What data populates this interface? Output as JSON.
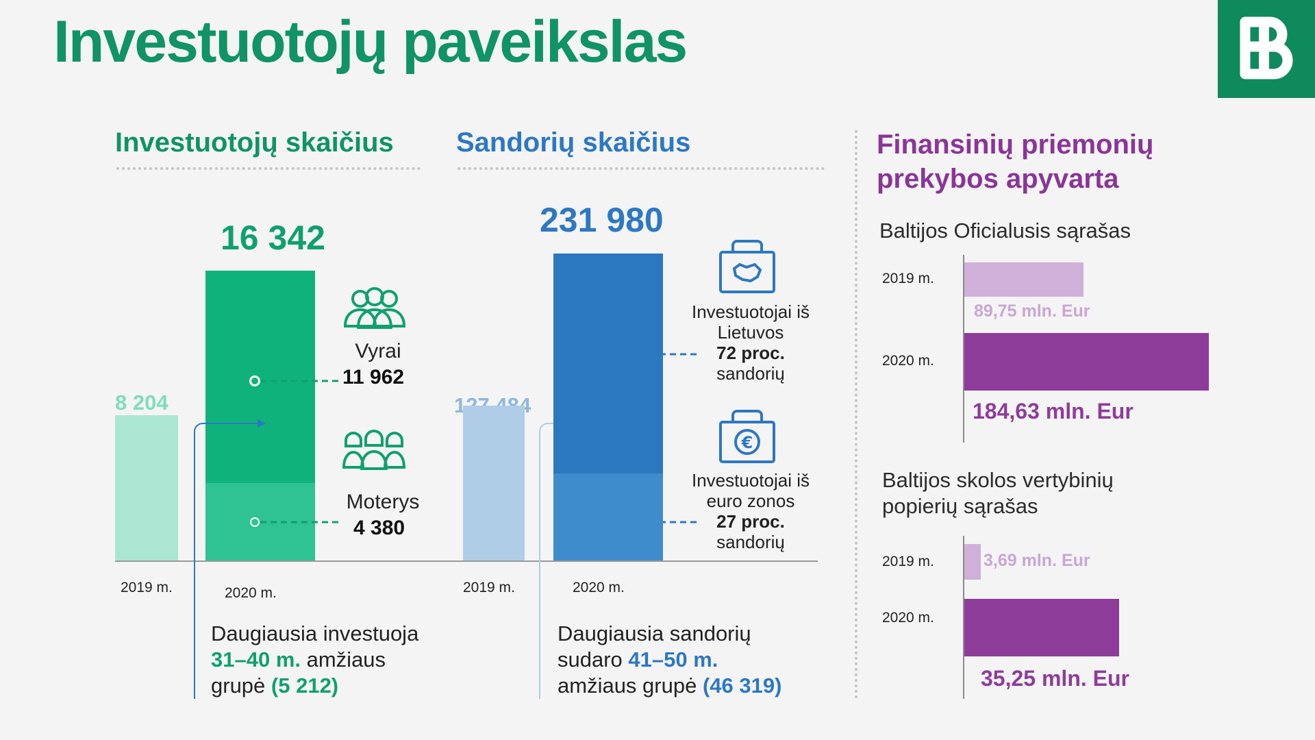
{
  "title": "Investuotojų paveikslas",
  "colors": {
    "green_dark": "#109366",
    "green_2020_top": "#10b27c",
    "green_2020_bottom": "#2fc293",
    "green_2019": "#abe6d2",
    "blue_dark": "#2d78c2",
    "blue_2020_top": "#2b78c0",
    "blue_2020_bottom": "#3f8ccc",
    "blue_2019": "#b0cde7",
    "purple": "#8e3c9a",
    "purple_light": "#cfb0d8",
    "purple_title": "#8a3597"
  },
  "investors": {
    "section_title": "Investuotojų skaičius",
    "y2019_value_label": "8 204",
    "y2020_value_label": "16 342",
    "y2019_label": "2019 m.",
    "y2020_label": "2020 m.",
    "men_label": "Vyrai",
    "men_value": "11 962",
    "women_label": "Moterys",
    "women_value": "4 380",
    "note_line1": "Daugiausia investuoja",
    "note_line2_bold": "31–40 m.",
    "note_line2_rest": " amžiaus",
    "note_line3": "grupė ",
    "note_line3_bold": "(5 212)"
  },
  "deals": {
    "section_title": "Sandorių skaičius",
    "y2019_value_label": "127 484",
    "y2020_value_label": "231 980",
    "y2019_label": "2019 m.",
    "y2020_label": "2020 m.",
    "lt_line1": "Investuotojai iš",
    "lt_line2": "Lietuvos",
    "lt_line3": "72 proc.",
    "lt_line4": "sandorių",
    "eu_line1": "Investuotojai iš",
    "eu_line2": "euro zonos",
    "eu_line3": "27 proc.",
    "eu_line4": "sandorių",
    "note_line1": "Daugiausia sandorių",
    "note_line2": "sudaro ",
    "note_line2_bold": "41–50 m.",
    "note_line3": "amžiaus grupė ",
    "note_line3_bold": "(46 319)"
  },
  "turnover": {
    "section_title_line1": "Finansinių priemonių",
    "section_title_line2": "prekybos apyvarta",
    "official_title": "Baltijos Oficialusis sąrašas",
    "official_2019_label": "2019 m.",
    "official_2019_value": "89,75 mln. Eur",
    "official_2020_label": "2020 m.",
    "official_2020_value": "184,63 mln. Eur",
    "debt_title_line1": "Baltijos skolos vertybinių",
    "debt_title_line2": "popierių sąrašas",
    "debt_2019_label": "2019 m.",
    "debt_2019_value": "3,69 mln. Eur",
    "debt_2020_label": "2020 m.",
    "debt_2020_value": "35,25 mln. Eur"
  },
  "chart_data": [
    {
      "type": "bar",
      "title": "Investuotojų skaičius",
      "categories": [
        "2019 m.",
        "2020 m."
      ],
      "values": [
        8204,
        16342
      ],
      "breakdown_2020": [
        {
          "name": "Vyrai",
          "value": 11962
        },
        {
          "name": "Moterys",
          "value": 4380
        }
      ]
    },
    {
      "type": "bar",
      "title": "Sandorių skaičius",
      "categories": [
        "2019 m.",
        "2020 m."
      ],
      "values": [
        127484,
        231980
      ],
      "breakdown_2020": [
        {
          "name": "Investuotojai iš Lietuvos",
          "percent": 72
        },
        {
          "name": "Investuotojai iš euro zonos",
          "percent": 27
        }
      ]
    },
    {
      "type": "bar",
      "title": "Baltijos Oficialusis sąrašas",
      "orientation": "horizontal",
      "categories": [
        "2019 m.",
        "2020 m."
      ],
      "values": [
        89.75,
        184.63
      ],
      "unit": "mln. Eur"
    },
    {
      "type": "bar",
      "title": "Baltijos skolos vertybinių popierių sąrašas",
      "orientation": "horizontal",
      "categories": [
        "2019 m.",
        "2020 m."
      ],
      "values": [
        3.69,
        35.25
      ],
      "unit": "mln. Eur"
    }
  ]
}
